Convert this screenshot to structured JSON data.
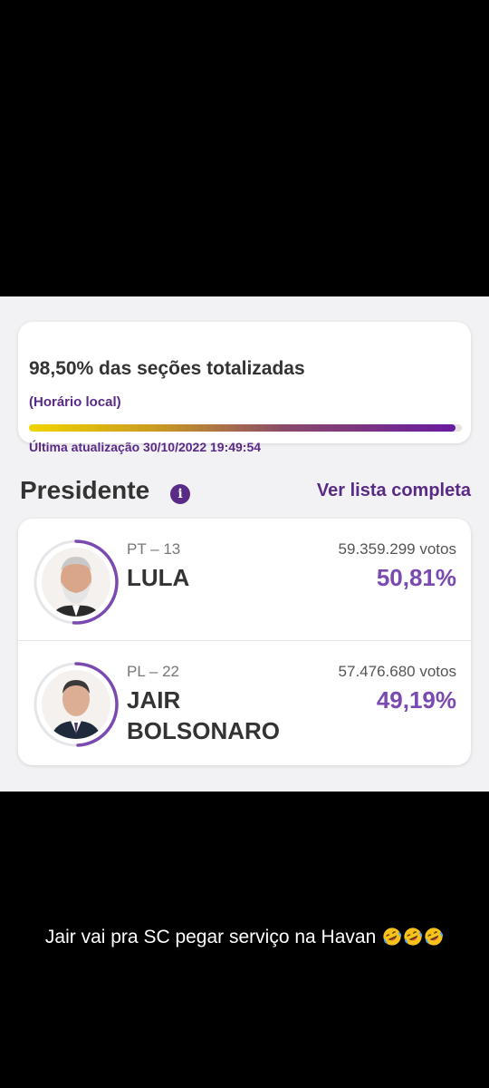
{
  "progress": {
    "title": "98,50% das seções totalizadas",
    "subtitle": "(Horário local)",
    "percent": 98.5,
    "updated": "Última atualização 30/10/2022 19:49:54"
  },
  "section": {
    "title": "Presidente",
    "info_icon": "info-icon",
    "link": "Ver lista completa"
  },
  "candidates": [
    {
      "party": "PT – 13",
      "name_line1": "LULA",
      "name_line2": "",
      "votes": "59.359.299 votos",
      "percent": "50,81%",
      "share": 50.81
    },
    {
      "party": "PL – 22",
      "name_line1": "JAIR",
      "name_line2": "BOLSONARO",
      "votes": "57.476.680 votos",
      "percent": "49,19%",
      "share": 49.19
    }
  ],
  "caption": {
    "text": "Jair vai pra SC pegar serviço na Havan",
    "emoji": "rolling-on-floor-laughing-icon",
    "emoji_count": 3
  },
  "colors": {
    "accent": "#5a2a87",
    "percent": "#7a4ab0",
    "bar_start": "#f1d400",
    "bar_end": "#6a1aa0"
  }
}
